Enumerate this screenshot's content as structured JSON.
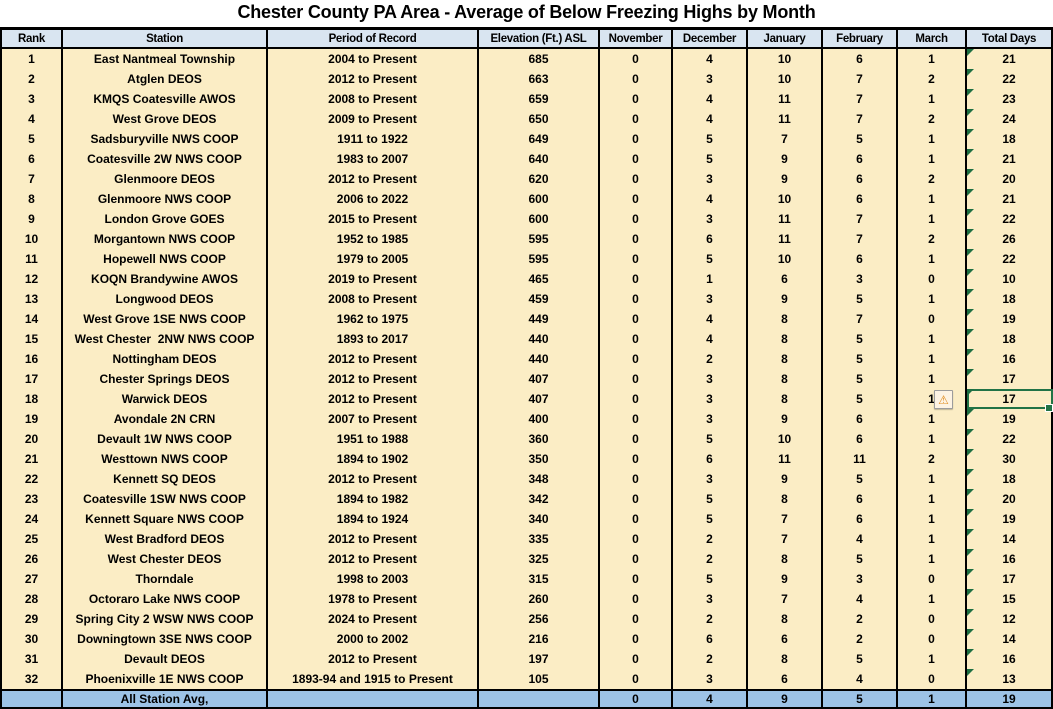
{
  "title": "Chester County PA Area - Average of Below Freezing Highs by Month",
  "icons": {
    "warning_glyph": "⚠"
  },
  "colors": {
    "header_bg": "#D9E5F1",
    "data_row_bg": "#FBEDC5",
    "avg_row_bg": "#9DC3E6",
    "border": "#000000",
    "selection_green": "#217346",
    "error_indicator_green": "#1D6F42",
    "warning_orange": "#E08C1F"
  },
  "table": {
    "columns": [
      "Rank",
      "Station",
      "Period of Record",
      "Elevation (Ft.) ASL",
      "November",
      "December",
      "January",
      "February",
      "March",
      "Total Days"
    ],
    "rows": [
      {
        "rank": 1,
        "station": "East Nantmeal Township",
        "period": "2004 to Present",
        "elevation": 685,
        "november": 0,
        "december": 4,
        "january": 10,
        "february": 6,
        "march": 1,
        "total_days": 21
      },
      {
        "rank": 2,
        "station": "Atglen DEOS",
        "period": "2012 to Present",
        "elevation": 663,
        "november": 0,
        "december": 3,
        "january": 10,
        "february": 7,
        "march": 2,
        "total_days": 22
      },
      {
        "rank": 3,
        "station": "KMQS Coatesville AWOS",
        "period": "2008 to Present",
        "elevation": 659,
        "november": 0,
        "december": 4,
        "january": 11,
        "february": 7,
        "march": 1,
        "total_days": 23
      },
      {
        "rank": 4,
        "station": "West Grove DEOS",
        "period": "2009 to Present",
        "elevation": 650,
        "november": 0,
        "december": 4,
        "january": 11,
        "february": 7,
        "march": 2,
        "total_days": 24
      },
      {
        "rank": 5,
        "station": "Sadsburyville NWS COOP",
        "period": "1911 to 1922",
        "elevation": 649,
        "november": 0,
        "december": 5,
        "january": 7,
        "february": 5,
        "march": 1,
        "total_days": 18
      },
      {
        "rank": 6,
        "station": "Coatesville 2W NWS COOP",
        "period": "1983 to 2007",
        "elevation": 640,
        "november": 0,
        "december": 5,
        "january": 9,
        "february": 6,
        "march": 1,
        "total_days": 21
      },
      {
        "rank": 7,
        "station": "Glenmoore DEOS",
        "period": "2012 to Present",
        "elevation": 620,
        "november": 0,
        "december": 3,
        "january": 9,
        "february": 6,
        "march": 2,
        "total_days": 20
      },
      {
        "rank": 8,
        "station": "Glenmoore NWS COOP",
        "period": "2006 to 2022",
        "elevation": 600,
        "november": 0,
        "december": 4,
        "january": 10,
        "february": 6,
        "march": 1,
        "total_days": 21
      },
      {
        "rank": 9,
        "station": "London Grove GOES",
        "period": "2015 to Present",
        "elevation": 600,
        "november": 0,
        "december": 3,
        "january": 11,
        "february": 7,
        "march": 1,
        "total_days": 22
      },
      {
        "rank": 10,
        "station": "Morgantown NWS COOP",
        "period": "1952 to 1985",
        "elevation": 595,
        "november": 0,
        "december": 6,
        "january": 11,
        "february": 7,
        "march": 2,
        "total_days": 26
      },
      {
        "rank": 11,
        "station": "Hopewell NWS COOP",
        "period": "1979 to 2005",
        "elevation": 595,
        "november": 0,
        "december": 5,
        "january": 10,
        "february": 6,
        "march": 1,
        "total_days": 22
      },
      {
        "rank": 12,
        "station": "KOQN Brandywine AWOS",
        "period": "2019 to Present",
        "elevation": 465,
        "november": 0,
        "december": 1,
        "january": 6,
        "february": 3,
        "march": 0,
        "total_days": 10
      },
      {
        "rank": 13,
        "station": "Longwood DEOS",
        "period": "2008 to Present",
        "elevation": 459,
        "november": 0,
        "december": 3,
        "january": 9,
        "february": 5,
        "march": 1,
        "total_days": 18
      },
      {
        "rank": 14,
        "station": "West Grove 1SE NWS COOP",
        "period": "1962 to 1975",
        "elevation": 449,
        "november": 0,
        "december": 4,
        "january": 8,
        "february": 7,
        "march": 0,
        "total_days": 19
      },
      {
        "rank": 15,
        "station": "West Chester  2NW NWS COOP",
        "period": "1893 to 2017",
        "elevation": 440,
        "november": 0,
        "december": 4,
        "january": 8,
        "february": 5,
        "march": 1,
        "total_days": 18
      },
      {
        "rank": 16,
        "station": "Nottingham DEOS",
        "period": "2012 to Present",
        "elevation": 440,
        "november": 0,
        "december": 2,
        "january": 8,
        "february": 5,
        "march": 1,
        "total_days": 16
      },
      {
        "rank": 17,
        "station": "Chester Springs DEOS",
        "period": "2012 to Present",
        "elevation": 407,
        "november": 0,
        "december": 3,
        "january": 8,
        "february": 5,
        "march": 1,
        "total_days": 17
      },
      {
        "rank": 18,
        "station": "Warwick DEOS",
        "period": "2012 to Present",
        "elevation": 407,
        "november": 0,
        "december": 3,
        "january": 8,
        "february": 5,
        "march": 1,
        "total_days": 17
      },
      {
        "rank": 19,
        "station": "Avondale 2N CRN",
        "period": "2007 to Present",
        "elevation": 400,
        "november": 0,
        "december": 3,
        "january": 9,
        "february": 6,
        "march": 1,
        "total_days": 19
      },
      {
        "rank": 20,
        "station": "Devault 1W NWS COOP",
        "period": "1951 to 1988",
        "elevation": 360,
        "november": 0,
        "december": 5,
        "january": 10,
        "february": 6,
        "march": 1,
        "total_days": 22
      },
      {
        "rank": 21,
        "station": "Westtown NWS COOP",
        "period": "1894 to 1902",
        "elevation": 350,
        "november": 0,
        "december": 6,
        "january": 11,
        "february": 11,
        "march": 2,
        "total_days": 30
      },
      {
        "rank": 22,
        "station": "Kennett SQ DEOS",
        "period": "2012 to Present",
        "elevation": 348,
        "november": 0,
        "december": 3,
        "january": 9,
        "february": 5,
        "march": 1,
        "total_days": 18
      },
      {
        "rank": 23,
        "station": "Coatesville 1SW NWS COOP",
        "period": "1894 to 1982",
        "elevation": 342,
        "november": 0,
        "december": 5,
        "january": 8,
        "february": 6,
        "march": 1,
        "total_days": 20
      },
      {
        "rank": 24,
        "station": "Kennett Square NWS COOP",
        "period": "1894 to 1924",
        "elevation": 340,
        "november": 0,
        "december": 5,
        "january": 7,
        "february": 6,
        "march": 1,
        "total_days": 19
      },
      {
        "rank": 25,
        "station": "West Bradford DEOS",
        "period": "2012 to Present",
        "elevation": 335,
        "november": 0,
        "december": 2,
        "january": 7,
        "february": 4,
        "march": 1,
        "total_days": 14
      },
      {
        "rank": 26,
        "station": "West Chester DEOS",
        "period": "2012 to Present",
        "elevation": 325,
        "november": 0,
        "december": 2,
        "january": 8,
        "february": 5,
        "march": 1,
        "total_days": 16
      },
      {
        "rank": 27,
        "station": "Thorndale",
        "period": "1998 to 2003",
        "elevation": 315,
        "november": 0,
        "december": 5,
        "january": 9,
        "february": 3,
        "march": 0,
        "total_days": 17
      },
      {
        "rank": 28,
        "station": "Octoraro Lake NWS COOP",
        "period": "1978 to Present",
        "elevation": 260,
        "november": 0,
        "december": 3,
        "january": 7,
        "february": 4,
        "march": 1,
        "total_days": 15
      },
      {
        "rank": 29,
        "station": "Spring City 2 WSW NWS COOP",
        "period": "2024 to Present",
        "elevation": 256,
        "november": 0,
        "december": 2,
        "january": 8,
        "february": 2,
        "march": 0,
        "total_days": 12
      },
      {
        "rank": 30,
        "station": "Downingtown 3SE NWS COOP",
        "period": "2000 to 2002",
        "elevation": 216,
        "november": 0,
        "december": 6,
        "january": 6,
        "february": 2,
        "march": 0,
        "total_days": 14
      },
      {
        "rank": 31,
        "station": "Devault DEOS",
        "period": "2012 to Present",
        "elevation": 197,
        "november": 0,
        "december": 2,
        "january": 8,
        "february": 5,
        "march": 1,
        "total_days": 16
      },
      {
        "rank": 32,
        "station": "Phoenixville 1E NWS COOP",
        "period": "1893-94 and 1915 to Present",
        "elevation": 105,
        "november": 0,
        "december": 3,
        "january": 6,
        "february": 4,
        "march": 0,
        "total_days": 13
      }
    ],
    "avg_row": {
      "label": "All Station Avg,",
      "november": 0,
      "december": 4,
      "january": 9,
      "february": 5,
      "march": 1,
      "total_days": 19
    },
    "annotations": {
      "warning_cell": {
        "row_rank": 18,
        "column": "March"
      },
      "selected_cell": {
        "row_rank": 18,
        "column": "Total Days"
      },
      "error_indicator_column": "Total Days"
    }
  }
}
